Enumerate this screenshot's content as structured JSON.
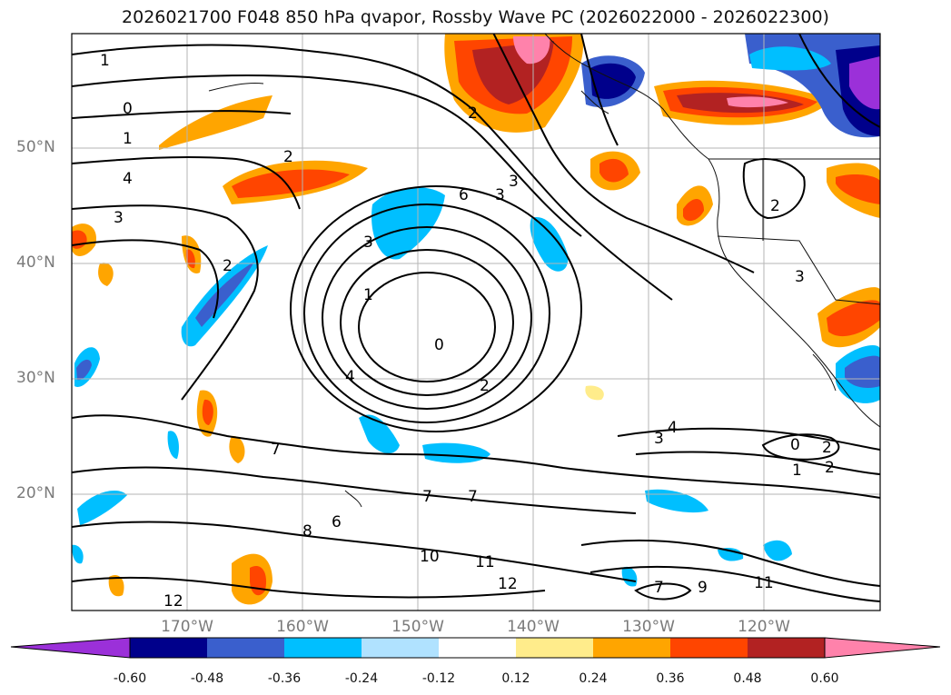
{
  "title": "2026021700 F048 850 hPa qvapor, Rossby Wave PC (2026022000 - 2026022300)",
  "map": {
    "lat_labels": [
      "50°N",
      "40°N",
      "30°N",
      "20°N"
    ],
    "lon_labels": [
      "170°W",
      "160°W",
      "150°W",
      "140°W",
      "130°W",
      "120°W"
    ],
    "contour_labels": [
      "1",
      "0",
      "1",
      "4",
      "3",
      "2",
      "2",
      "3",
      "3",
      "2",
      "6",
      "3",
      "1",
      "0",
      "4",
      "2",
      "2",
      "3",
      "4",
      "0",
      "1",
      "2",
      "2",
      "7",
      "7",
      "7",
      "6",
      "8",
      "10",
      "11",
      "12",
      "12",
      "11",
      "9",
      "7",
      "3"
    ]
  },
  "colorbar": {
    "ticks": [
      "-0.60",
      "-0.48",
      "-0.36",
      "-0.24",
      "-0.12",
      "0.12",
      "0.24",
      "0.36",
      "0.48",
      "0.60"
    ],
    "colors": [
      "#9b30d9",
      "#00008b",
      "#3a5fcd",
      "#00bfff",
      "#b0e2ff",
      "#ffffff",
      "#ffec8b",
      "#ffa500",
      "#ff4500",
      "#b22222",
      "#ff82ab"
    ]
  }
}
